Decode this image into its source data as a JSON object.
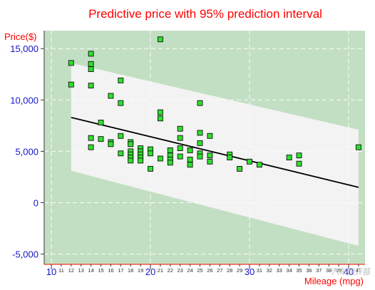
{
  "chart_data": {
    "type": "scatter",
    "title": "Predictive price with 95% prediction interval",
    "ylabel": "Price($)",
    "xlabel": "Mileage (mpg)",
    "xlim": [
      10,
      42
    ],
    "ylim": [
      -5000,
      16000
    ],
    "x_major_ticks": [
      10,
      20,
      30,
      40
    ],
    "x_minor_ticks": [
      11,
      12,
      13,
      14,
      15,
      16,
      17,
      18,
      19,
      21,
      22,
      23,
      24,
      25,
      26,
      27,
      28,
      29,
      31,
      32,
      33,
      34,
      35,
      36,
      37,
      38,
      39,
      41
    ],
    "y_ticks": [
      -5000,
      0,
      5000,
      10000,
      15000
    ],
    "y_tick_labels": [
      "-5,000",
      "0",
      "5,000",
      "10,000",
      "15,000"
    ],
    "grid": true,
    "colors": {
      "plot_background": "#c3dfc3",
      "band_fill": "#f3f3f3",
      "point_fill": "#2ee02e",
      "fit_line": "#000000",
      "title": "#ff0000",
      "axis_title": "#ff0000",
      "tick_labels": "#1515c8",
      "minor_tick_labels": "#2a2a2a",
      "axis_line": "#ff0000"
    },
    "prediction_band": {
      "x": [
        12,
        41
      ],
      "upper": [
        13600,
        7100
      ],
      "lower": [
        3100,
        -4200
      ]
    },
    "fit_line": {
      "x": [
        12,
        41
      ],
      "y": [
        8300,
        1500
      ]
    },
    "points": [
      [
        12,
        13600
      ],
      [
        12,
        11500
      ],
      [
        14,
        14500
      ],
      [
        14,
        13500
      ],
      [
        14,
        13000
      ],
      [
        14,
        11400
      ],
      [
        14,
        6300
      ],
      [
        14,
        5400
      ],
      [
        15,
        7800
      ],
      [
        15,
        6200
      ],
      [
        16,
        10400
      ],
      [
        16,
        5900
      ],
      [
        16,
        5700
      ],
      [
        17,
        11900
      ],
      [
        17,
        9700
      ],
      [
        17,
        6500
      ],
      [
        17,
        4800
      ],
      [
        18,
        5900
      ],
      [
        18,
        5700
      ],
      [
        18,
        5000
      ],
      [
        18,
        4700
      ],
      [
        18,
        4400
      ],
      [
        18,
        4100
      ],
      [
        19,
        5300
      ],
      [
        19,
        5000
      ],
      [
        19,
        4700
      ],
      [
        19,
        4400
      ],
      [
        19,
        4100
      ],
      [
        20,
        5200
      ],
      [
        20,
        4800
      ],
      [
        20,
        3300
      ],
      [
        21,
        15900
      ],
      [
        21,
        8800
      ],
      [
        21,
        8200
      ],
      [
        21,
        4300
      ],
      [
        22,
        5100
      ],
      [
        22,
        4600
      ],
      [
        22,
        4200
      ],
      [
        22,
        3900
      ],
      [
        23,
        7200
      ],
      [
        23,
        6300
      ],
      [
        23,
        5300
      ],
      [
        23,
        4500
      ],
      [
        24,
        5100
      ],
      [
        24,
        4200
      ],
      [
        24,
        3700
      ],
      [
        25,
        9700
      ],
      [
        25,
        6800
      ],
      [
        25,
        5800
      ],
      [
        25,
        4800
      ],
      [
        25,
        4500
      ],
      [
        26,
        6500
      ],
      [
        26,
        4600
      ],
      [
        26,
        4000
      ],
      [
        28,
        4700
      ],
      [
        28,
        4400
      ],
      [
        29,
        3300
      ],
      [
        30,
        4000
      ],
      [
        31,
        3700
      ],
      [
        34,
        4400
      ],
      [
        35,
        4600
      ],
      [
        35,
        3800
      ],
      [
        41,
        5400
      ]
    ]
  },
  "watermark": "汽车测评部"
}
